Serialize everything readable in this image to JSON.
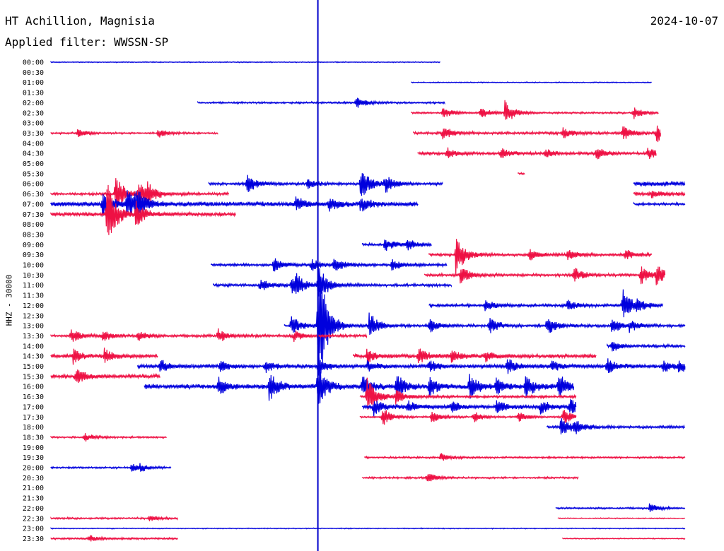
{
  "header": {
    "station": "HT Achillion, Magnisia",
    "date": "2024-10-07",
    "filter_label": "Applied filter: WWSSN-SP",
    "channel_label": "HHZ - 30000"
  },
  "colors": {
    "blue": "#0000dd",
    "red": "#ee1144",
    "marker": "#0000cc"
  },
  "chart_data": {
    "type": "line",
    "title": "HT Achillion, Magnisia",
    "ylabel": "HHZ - 30000",
    "row_labels": [
      "00:00",
      "00:30",
      "01:00",
      "01:30",
      "02:00",
      "02:30",
      "03:00",
      "03:30",
      "04:00",
      "04:30",
      "05:00",
      "05:30",
      "06:00",
      "06:30",
      "07:00",
      "07:30",
      "08:00",
      "08:30",
      "09:00",
      "09:30",
      "10:00",
      "10:30",
      "11:00",
      "11:30",
      "12:00",
      "12:30",
      "13:00",
      "13:30",
      "14:00",
      "14:30",
      "15:00",
      "15:30",
      "16:00",
      "16:30",
      "17:00",
      "17:30",
      "18:00",
      "18:30",
      "19:00",
      "19:30",
      "20:00",
      "20:30",
      "21:00",
      "21:30",
      "22:00",
      "22:30",
      "23:00",
      "23:30"
    ],
    "row_minutes": 30,
    "marker_minute": 12,
    "segments": [
      {
        "row": 0,
        "start": 0.0,
        "end": 17.5,
        "amp": 1,
        "events": []
      },
      {
        "row": 2,
        "start": 16.2,
        "end": 27.0,
        "amp": 1,
        "events": []
      },
      {
        "row": 4,
        "start": 6.6,
        "end": 17.7,
        "amp": 2,
        "events": [
          [
            13.7,
            10
          ]
        ]
      },
      {
        "row": 5,
        "start": 16.2,
        "end": 27.3,
        "amp": 2,
        "events": [
          [
            17.6,
            8
          ],
          [
            19.3,
            8
          ],
          [
            20.4,
            18
          ],
          [
            26.2,
            8
          ]
        ]
      },
      {
        "row": 7,
        "start": 0.0,
        "end": 7.5,
        "amp": 2,
        "events": [
          [
            1.2,
            6
          ],
          [
            4.8,
            7
          ]
        ]
      },
      {
        "row": 7,
        "start": 16.3,
        "end": 27.4,
        "amp": 3,
        "events": [
          [
            17.6,
            10
          ],
          [
            23.0,
            8
          ],
          [
            25.7,
            10
          ],
          [
            27.2,
            14
          ]
        ]
      },
      {
        "row": 9,
        "start": 16.5,
        "end": 27.2,
        "amp": 3,
        "events": [
          [
            17.8,
            8
          ],
          [
            20.2,
            8
          ],
          [
            22.2,
            6
          ],
          [
            24.5,
            10
          ],
          [
            26.8,
            10
          ]
        ]
      },
      {
        "row": 11,
        "start": 21.0,
        "end": 21.3,
        "amp": 2,
        "events": []
      },
      {
        "row": 12,
        "start": 7.1,
        "end": 17.6,
        "amp": 3,
        "events": [
          [
            8.8,
            14
          ],
          [
            13.9,
            26
          ],
          [
            15.0,
            14
          ],
          [
            11.5,
            8
          ]
        ]
      },
      {
        "row": 12,
        "start": 26.2,
        "end": 28.5,
        "amp": 5,
        "events": []
      },
      {
        "row": 13,
        "start": 0.0,
        "end": 8.0,
        "amp": 3,
        "events": [
          [
            2.9,
            28
          ],
          [
            3.9,
            22
          ],
          [
            4.3,
            14
          ]
        ]
      },
      {
        "row": 13,
        "start": 26.2,
        "end": 28.5,
        "amp": 4,
        "events": [
          [
            27.0,
            6
          ]
        ]
      },
      {
        "row": 14,
        "start": 0.0,
        "end": 16.5,
        "amp": 5,
        "events": [
          [
            2.3,
            20
          ],
          [
            3.4,
            22
          ],
          [
            3.8,
            24
          ],
          [
            11.0,
            10
          ],
          [
            12.5,
            10
          ],
          [
            13.9,
            10
          ]
        ]
      },
      {
        "row": 14,
        "start": 26.2,
        "end": 28.5,
        "amp": 3,
        "events": []
      },
      {
        "row": 15,
        "start": 0.0,
        "end": 8.3,
        "amp": 4,
        "events": [
          [
            2.5,
            52
          ],
          [
            3.8,
            18
          ]
        ]
      },
      {
        "row": 18,
        "start": 14.0,
        "end": 17.1,
        "amp": 3,
        "events": [
          [
            15.0,
            10
          ],
          [
            16.0,
            8
          ]
        ]
      },
      {
        "row": 19,
        "start": 17.0,
        "end": 27.0,
        "amp": 3,
        "events": [
          [
            18.2,
            30
          ],
          [
            21.5,
            8
          ],
          [
            23.2,
            8
          ],
          [
            25.8,
            8
          ]
        ]
      },
      {
        "row": 20,
        "start": 7.2,
        "end": 17.8,
        "amp": 3,
        "events": [
          [
            10.0,
            10
          ],
          [
            11.7,
            8
          ],
          [
            12.7,
            12
          ],
          [
            15.3,
            10
          ]
        ]
      },
      {
        "row": 21,
        "start": 16.8,
        "end": 27.6,
        "amp": 3,
        "events": [
          [
            18.4,
            14
          ],
          [
            23.5,
            12
          ],
          [
            26.5,
            14
          ],
          [
            27.2,
            16
          ]
        ]
      },
      {
        "row": 22,
        "start": 7.3,
        "end": 18.0,
        "amp": 3,
        "events": [
          [
            9.4,
            10
          ],
          [
            10.8,
            14
          ],
          [
            11.0,
            10
          ],
          [
            12.0,
            30
          ]
        ]
      },
      {
        "row": 24,
        "start": 17.0,
        "end": 27.5,
        "amp": 3,
        "events": [
          [
            19.5,
            8
          ],
          [
            23.2,
            8
          ],
          [
            25.7,
            26
          ],
          [
            26.3,
            8
          ]
        ]
      },
      {
        "row": 26,
        "start": 10.5,
        "end": 28.5,
        "amp": 3,
        "events": [
          [
            10.8,
            14
          ],
          [
            12.0,
            110
          ],
          [
            14.3,
            20
          ],
          [
            17.0,
            10
          ],
          [
            19.7,
            12
          ],
          [
            22.3,
            14
          ],
          [
            25.2,
            12
          ],
          [
            26.0,
            8
          ]
        ]
      },
      {
        "row": 27,
        "start": 0.0,
        "end": 14.2,
        "amp": 3,
        "events": [
          [
            0.9,
            10
          ],
          [
            2.3,
            8
          ],
          [
            3.9,
            8
          ],
          [
            7.5,
            10
          ],
          [
            10.9,
            8
          ]
        ]
      },
      {
        "row": 28,
        "start": 25.0,
        "end": 28.5,
        "amp": 3,
        "events": [
          [
            25.2,
            8
          ]
        ]
      },
      {
        "row": 29,
        "start": 0.0,
        "end": 4.8,
        "amp": 4,
        "events": [
          [
            1.0,
            10
          ],
          [
            2.4,
            10
          ]
        ]
      },
      {
        "row": 29,
        "start": 13.6,
        "end": 24.5,
        "amp": 4,
        "events": [
          [
            14.2,
            10
          ],
          [
            16.5,
            14
          ],
          [
            18.0,
            10
          ],
          [
            19.5,
            8
          ]
        ]
      },
      {
        "row": 30,
        "start": 3.9,
        "end": 28.5,
        "amp": 4,
        "events": [
          [
            4.9,
            10
          ],
          [
            7.6,
            8
          ],
          [
            9.6,
            10
          ],
          [
            12.0,
            14
          ],
          [
            14.2,
            8
          ],
          [
            17.0,
            10
          ],
          [
            20.5,
            12
          ],
          [
            22.5,
            8
          ],
          [
            25.0,
            10
          ],
          [
            27.5,
            10
          ],
          [
            28.2,
            8
          ]
        ]
      },
      {
        "row": 31,
        "start": 0.0,
        "end": 4.9,
        "amp": 4,
        "events": [
          [
            1.1,
            12
          ]
        ]
      },
      {
        "row": 32,
        "start": 4.2,
        "end": 23.5,
        "amp": 5,
        "events": [
          [
            7.5,
            14
          ],
          [
            9.8,
            22
          ],
          [
            12.0,
            30
          ],
          [
            14.0,
            16
          ],
          [
            15.5,
            20
          ],
          [
            17.0,
            14
          ],
          [
            18.8,
            18
          ],
          [
            20.0,
            12
          ],
          [
            21.3,
            18
          ],
          [
            22.8,
            20
          ]
        ]
      },
      {
        "row": 33,
        "start": 13.9,
        "end": 23.6,
        "amp": 3,
        "events": [
          [
            14.2,
            30
          ],
          [
            15.5,
            10
          ]
        ]
      },
      {
        "row": 34,
        "start": 14.0,
        "end": 23.6,
        "amp": 4,
        "events": [
          [
            14.5,
            12
          ],
          [
            16.0,
            10
          ],
          [
            18.0,
            8
          ],
          [
            20.0,
            10
          ],
          [
            22.0,
            10
          ],
          [
            23.3,
            12
          ]
        ]
      },
      {
        "row": 35,
        "start": 13.9,
        "end": 23.6,
        "amp": 2,
        "events": [
          [
            14.9,
            14
          ],
          [
            17.1,
            10
          ],
          [
            19.0,
            8
          ],
          [
            21.0,
            8
          ],
          [
            23.0,
            12
          ]
        ]
      },
      {
        "row": 36,
        "start": 22.3,
        "end": 28.5,
        "amp": 3,
        "events": [
          [
            22.9,
            16
          ],
          [
            23.5,
            10
          ]
        ]
      },
      {
        "row": 37,
        "start": 0.0,
        "end": 5.2,
        "amp": 2,
        "events": [
          [
            1.5,
            6
          ]
        ]
      },
      {
        "row": 39,
        "start": 14.1,
        "end": 28.5,
        "amp": 2,
        "events": [
          [
            17.5,
            6
          ]
        ]
      },
      {
        "row": 40,
        "start": 0.0,
        "end": 5.4,
        "amp": 2,
        "events": [
          [
            3.6,
            6
          ],
          [
            4.0,
            4
          ]
        ]
      },
      {
        "row": 41,
        "start": 14.0,
        "end": 23.7,
        "amp": 2,
        "events": [
          [
            16.9,
            8
          ]
        ]
      },
      {
        "row": 44,
        "start": 22.7,
        "end": 28.5,
        "amp": 2,
        "events": [
          [
            26.9,
            6
          ]
        ]
      },
      {
        "row": 45,
        "start": 0.0,
        "end": 5.7,
        "amp": 2,
        "events": [
          [
            4.4,
            4
          ]
        ]
      },
      {
        "row": 45,
        "start": 22.8,
        "end": 28.5,
        "amp": 1,
        "events": []
      },
      {
        "row": 46,
        "start": 0.0,
        "end": 28.5,
        "amp": 1,
        "events": []
      },
      {
        "row": 47,
        "start": 0.0,
        "end": 5.7,
        "amp": 2,
        "events": [
          [
            1.7,
            5
          ]
        ]
      },
      {
        "row": 47,
        "start": 23.0,
        "end": 28.5,
        "amp": 1,
        "events": []
      }
    ]
  }
}
